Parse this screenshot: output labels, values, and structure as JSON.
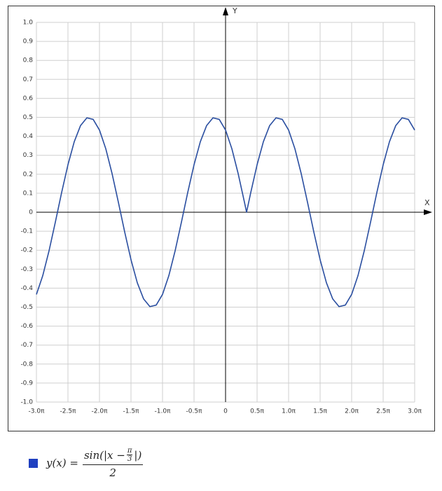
{
  "chart_data": {
    "type": "line",
    "x_label": "X",
    "y_label": "Y",
    "xlim": [
      -3,
      3
    ],
    "ylim": [
      -1,
      1
    ],
    "grid": true,
    "xticks": [
      {
        "value": -3,
        "label": "-3.0π"
      },
      {
        "value": -2.5,
        "label": "-2.5π"
      },
      {
        "value": -2,
        "label": "-2.0π"
      },
      {
        "value": -1.5,
        "label": "-1.5π"
      },
      {
        "value": -1,
        "label": "-1.0π"
      },
      {
        "value": -0.5,
        "label": "-0.5π"
      },
      0,
      {
        "value": 0.5,
        "label": "0.5π"
      },
      {
        "value": 1,
        "label": "1.0π"
      },
      {
        "value": 1.5,
        "label": "1.5π"
      },
      {
        "value": 2,
        "label": "2.0π"
      },
      {
        "value": 2.5,
        "label": "2.5π"
      },
      {
        "value": 3,
        "label": "3.0π"
      }
    ],
    "yticks": [
      {
        "value": 1,
        "label": "1.0"
      },
      0.9,
      0.8,
      0.7,
      0.6,
      0.5,
      0.4,
      0.3,
      0.2,
      0.1,
      0,
      -0.1,
      -0.2,
      -0.3,
      -0.4,
      -0.5,
      -0.6,
      -0.7,
      -0.8,
      -0.9,
      {
        "value": -1,
        "label": "-1.0"
      }
    ],
    "series": [
      {
        "color": "#2a4ea0",
        "x": [
          -3,
          -2.9,
          -2.8,
          -2.7,
          -2.6,
          -2.5,
          -2.4,
          -2.3,
          -2.2,
          -2.1,
          -2,
          -1.9,
          -1.8,
          -1.7,
          -1.6,
          -1.5,
          -1.4,
          -1.3,
          -1.2,
          -1.1,
          -1,
          -0.9,
          -0.8,
          -0.7,
          -0.6,
          -0.5,
          -0.4,
          -0.3,
          -0.2,
          -0.1,
          0,
          0.1,
          0.2,
          0.3,
          0.3333,
          0.4,
          0.5,
          0.6,
          0.7,
          0.8,
          0.9,
          1,
          1.1,
          1.2,
          1.3,
          1.4,
          1.5,
          1.6,
          1.7,
          1.8,
          1.9,
          2,
          2.1,
          2.2,
          2.3,
          2.4,
          2.5,
          2.6,
          2.7,
          2.8,
          2.9,
          3
        ],
        "values": [
          -0.433,
          -0.3346,
          -0.2034,
          -0.0523,
          0.104,
          0.25,
          0.3716,
          0.4568,
          0.4973,
          0.4891,
          0.433,
          0.3346,
          0.2034,
          0.0523,
          -0.104,
          -0.25,
          -0.3716,
          -0.4568,
          -0.4973,
          -0.4891,
          -0.433,
          -0.3346,
          -0.2034,
          -0.0523,
          0.104,
          0.25,
          0.3716,
          0.4568,
          0.4973,
          0.4891,
          0.433,
          0.3346,
          0.2034,
          0.0523,
          0,
          0.104,
          0.25,
          0.3716,
          0.4568,
          0.4973,
          0.4891,
          0.433,
          0.3346,
          0.2034,
          0.0523,
          -0.104,
          -0.25,
          -0.3716,
          -0.4568,
          -0.4973,
          -0.4891,
          -0.433,
          -0.3346,
          -0.2034,
          -0.0523,
          0.104,
          0.25,
          0.3716,
          0.4568,
          0.4973,
          0.4891,
          0.433
        ]
      }
    ],
    "legend": {
      "color": "#2040c0",
      "lhs": "y(x) =",
      "num_pre": "sin(|x −",
      "inner_num": "π",
      "inner_den": "3",
      "num_post": "|)",
      "den": "2"
    }
  }
}
